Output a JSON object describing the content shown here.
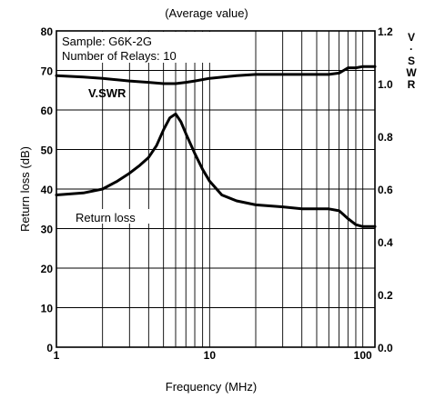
{
  "chart_data": {
    "type": "line",
    "title": "(Average value)",
    "xlabel": "Frequency (MHz)",
    "ylabel": "Return loss (dB)",
    "y2label_chars": [
      "V",
      "·",
      "S",
      "W",
      "R"
    ],
    "xscale": "log",
    "xlim": [
      1,
      120
    ],
    "ylim": [
      0,
      80
    ],
    "y2lim": [
      0.0,
      1.2
    ],
    "grid": true,
    "x_tick_labels": [
      {
        "value": 1,
        "label": "1"
      },
      {
        "value": 10,
        "label": "10"
      },
      {
        "value": 100,
        "label": "100"
      }
    ],
    "y_ticks": [
      0,
      10,
      20,
      30,
      40,
      50,
      60,
      70,
      80
    ],
    "y2_ticks": [
      "0.0",
      "0.2",
      "0.4",
      "0.6",
      "0.8",
      "1.0",
      "1.2"
    ],
    "annotations": [
      {
        "text": "Sample: G6K-2G"
      },
      {
        "text": "Number of Relays: 10"
      }
    ],
    "series": [
      {
        "name": "V.SWR",
        "axis": "right",
        "x": [
          1,
          1.5,
          2,
          3,
          4,
          5,
          6,
          7,
          8,
          10,
          15,
          20,
          30,
          40,
          50,
          60,
          70,
          75,
          80,
          90,
          100,
          120
        ],
        "y": [
          1.03,
          1.025,
          1.02,
          1.01,
          1.005,
          1.0,
          1.0,
          1.005,
          1.01,
          1.02,
          1.03,
          1.035,
          1.035,
          1.035,
          1.035,
          1.035,
          1.04,
          1.05,
          1.06,
          1.06,
          1.065,
          1.065
        ]
      },
      {
        "name": "Return loss",
        "axis": "left",
        "x": [
          1,
          1.5,
          2,
          2.5,
          3,
          3.5,
          4,
          4.5,
          5,
          5.5,
          6,
          6.5,
          7,
          8,
          9,
          10,
          12,
          15,
          20,
          30,
          40,
          50,
          60,
          70,
          75,
          80,
          90,
          100,
          110,
          120
        ],
        "y": [
          38.5,
          39,
          40,
          42,
          44,
          46,
          48,
          51,
          55,
          58,
          59,
          57,
          54,
          49,
          45,
          42,
          38.5,
          37,
          36,
          35.5,
          35,
          35,
          35,
          34.5,
          33.5,
          32.5,
          31,
          30.5,
          30.5,
          30.5
        ]
      }
    ]
  }
}
